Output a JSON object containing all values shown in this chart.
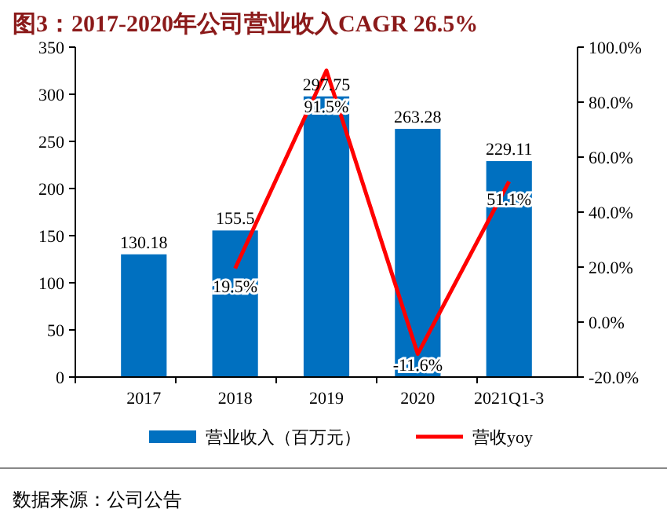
{
  "chart_data": {
    "type": "bar",
    "title": "图3：2017-2020年公司营业收入CAGR 26.5%",
    "categories": [
      "2017",
      "2018",
      "2019",
      "2020",
      "2021Q1-3"
    ],
    "series": [
      {
        "name": "营业收入（百万元）",
        "type": "bar",
        "color": "#0070c0",
        "values": [
          130.18,
          155.5,
          297.75,
          263.28,
          229.11
        ],
        "value_labels": [
          "130.18",
          "155.5",
          "297.75",
          "263.28",
          "229.11"
        ]
      },
      {
        "name": "营收yoy",
        "type": "line",
        "axis": "y2",
        "color": "#ff0000",
        "values": [
          null,
          19.5,
          91.5,
          -11.6,
          51.1
        ],
        "value_labels": [
          null,
          "19.5%",
          "91.5%",
          "-11.6%",
          "51.1%"
        ]
      }
    ],
    "ylim": [
      0,
      350
    ],
    "yticks": [
      0,
      50,
      100,
      150,
      200,
      250,
      300,
      350
    ],
    "y2lim": [
      -20,
      100
    ],
    "y2ticks": [
      {
        "value": -20,
        "label": "-20.0%"
      },
      {
        "value": 0,
        "label": "0.0%"
      },
      {
        "value": 20,
        "label": "20.0%"
      },
      {
        "value": 40,
        "label": "40.0%"
      },
      {
        "value": 60,
        "label": "60.0%"
      },
      {
        "value": 80,
        "label": "80.0%"
      },
      {
        "value": 100,
        "label": "100.0%"
      }
    ],
    "grid": false,
    "legend": "bottom",
    "annotations": [
      "数据来源：公司公告"
    ]
  }
}
